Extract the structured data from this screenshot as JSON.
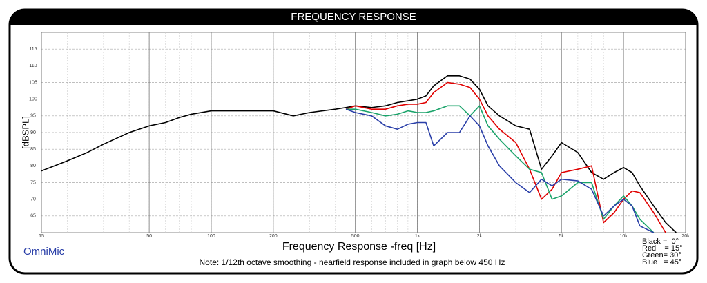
{
  "chart_data": {
    "type": "line",
    "title": "FREQUENCY RESPONSE",
    "x_label": "Frequency Response -freq [Hz]",
    "y_label": "[dBSPL]",
    "note": "Note: 1/12th octave smoothing - nearfield response included in graph below 450 Hz",
    "brand": "OmniMic",
    "xscale": "log",
    "grid": true,
    "minor_grid": true,
    "legend": "lower right",
    "xlim": [
      15,
      20000
    ],
    "ylim": [
      60,
      120
    ],
    "xticks": [
      15,
      50,
      100,
      200,
      500,
      {
        "value": 1000,
        "label": "1k"
      },
      {
        "value": 2000,
        "label": "2k"
      },
      {
        "value": 5000,
        "label": "5k"
      },
      {
        "value": 10000,
        "label": "10k"
      },
      {
        "value": 20000,
        "label": "20k"
      }
    ],
    "yticks": [
      65,
      70,
      75,
      80,
      85,
      90,
      95,
      100,
      105,
      110,
      115
    ],
    "x": [
      15,
      20,
      25,
      30,
      40,
      50,
      60,
      70,
      80,
      100,
      120,
      150,
      200,
      250,
      300,
      400,
      450,
      500,
      600,
      700,
      800,
      900,
      1000,
      1100,
      1200,
      1400,
      1600,
      1800,
      2000,
      2200,
      2500,
      3000,
      3500,
      4000,
      4500,
      5000,
      6000,
      7000,
      8000,
      9000,
      10000,
      11000,
      12000,
      14000,
      16000,
      18000
    ],
    "series": [
      {
        "name": "Black =  0°",
        "color": "#000000",
        "values": [
          78.5,
          81.5,
          84,
          86.5,
          90,
          92,
          93,
          94.5,
          95.5,
          96.5,
          96.5,
          96.5,
          96.5,
          95,
          96,
          97,
          97.5,
          98,
          97.5,
          98,
          99,
          99.5,
          100,
          101,
          104,
          107,
          107,
          106,
          103,
          98,
          95,
          92,
          91,
          79,
          83,
          87,
          84,
          78,
          76,
          78,
          79.5,
          78,
          74,
          68,
          63,
          60
        ]
      },
      {
        "name": "Red    = 15°",
        "color": "#e00000",
        "values": [
          null,
          null,
          null,
          null,
          null,
          null,
          null,
          null,
          null,
          null,
          null,
          null,
          null,
          null,
          null,
          null,
          97,
          98,
          97,
          97,
          98,
          98.5,
          98.5,
          99,
          102,
          105,
          104.5,
          103.5,
          100,
          95,
          91,
          87,
          79,
          70,
          73,
          78,
          79,
          80,
          63,
          66,
          70,
          72.5,
          72,
          66,
          60,
          null
        ]
      },
      {
        "name": "Green= 30°",
        "color": "#1aa36a",
        "values": [
          null,
          null,
          null,
          null,
          null,
          null,
          null,
          null,
          null,
          null,
          null,
          null,
          null,
          null,
          null,
          null,
          97,
          97,
          96,
          95,
          95.5,
          96.5,
          96,
          96,
          96.5,
          98,
          98,
          95,
          98,
          92,
          88,
          83,
          79,
          78,
          70,
          71,
          75,
          75,
          64,
          68,
          71,
          68,
          64,
          60,
          null,
          null
        ]
      },
      {
        "name": "Blue   = 45°",
        "color": "#2a3fa8",
        "values": [
          null,
          null,
          null,
          null,
          null,
          null,
          null,
          null,
          null,
          null,
          null,
          null,
          null,
          null,
          null,
          null,
          97,
          96,
          95,
          92,
          91,
          92.5,
          93,
          93,
          86,
          90,
          90,
          95,
          92,
          86,
          80,
          75,
          72,
          76,
          74,
          76,
          75.5,
          73,
          65,
          68,
          70,
          68,
          62,
          60,
          null,
          null
        ]
      }
    ]
  }
}
